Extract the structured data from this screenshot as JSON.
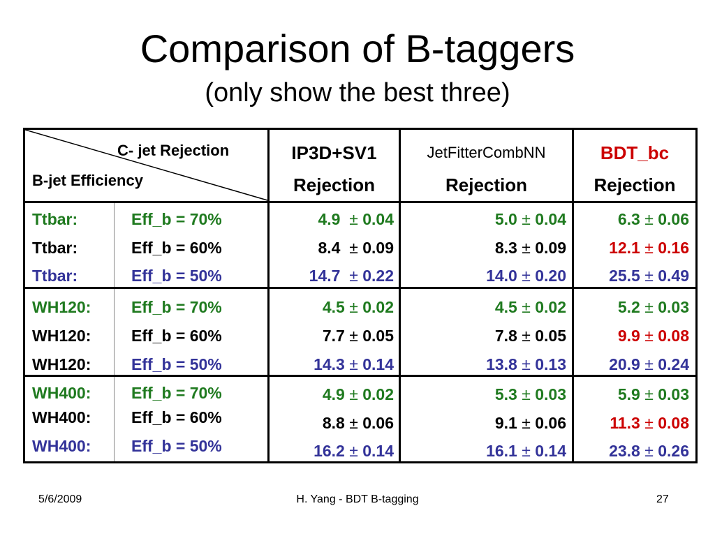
{
  "slide": {
    "title": "Comparison of B-taggers",
    "subtitle": "(only show the best three)"
  },
  "table": {
    "corner_top": "C- jet Rejection",
    "corner_bottom": "B-jet Efficiency",
    "columns": [
      {
        "line1": "IP3D+SV1",
        "line2": "Rejection"
      },
      {
        "line1": "JetFitterCombNN",
        "line2": "Rejection"
      },
      {
        "line1": "BDT_bc",
        "line2": "Rejection"
      }
    ],
    "pm": "±",
    "groups": [
      {
        "rows": [
          {
            "sample": "Ttbar:",
            "eff": "Eff_b = 70%",
            "vals": [
              [
                "4.9",
                "0.04"
              ],
              [
                "5.0",
                "0.04"
              ],
              [
                "6.3",
                "0.06"
              ]
            ]
          },
          {
            "sample": "Ttbar:",
            "eff": "Eff_b = 60%",
            "vals": [
              [
                "8.4",
                "0.09"
              ],
              [
                "8.3",
                "0.09"
              ],
              [
                "12.1",
                "0.16"
              ]
            ]
          },
          {
            "sample": "Ttbar:",
            "eff": "Eff_b = 50%",
            "vals": [
              [
                "14.7",
                "0.22"
              ],
              [
                "14.0",
                "0.20"
              ],
              [
                "25.5",
                "0.49"
              ]
            ]
          }
        ]
      },
      {
        "rows": [
          {
            "sample": "WH120:",
            "eff": "Eff_b = 70%",
            "vals": [
              [
                "4.5",
                "0.02"
              ],
              [
                "4.5",
                "0.02"
              ],
              [
                "5.2",
                "0.03"
              ]
            ]
          },
          {
            "sample": "WH120:",
            "eff": "Eff_b = 60%",
            "vals": [
              [
                "7.7",
                "0.05"
              ],
              [
                "7.8",
                "0.05"
              ],
              [
                "9.9",
                "0.08"
              ]
            ]
          },
          {
            "sample": "WH120:",
            "eff": "Eff_b = 50%",
            "vals": [
              [
                "14.3",
                "0.14"
              ],
              [
                "13.8",
                "0.13"
              ],
              [
                "20.9",
                "0.24"
              ]
            ]
          }
        ]
      },
      {
        "rows": [
          {
            "sample": "WH400:",
            "eff": "Eff_b = 70%",
            "vals": [
              [
                "4.9",
                "0.02"
              ],
              [
                "5.3",
                "0.03"
              ],
              [
                "5.9",
                "0.03"
              ]
            ]
          },
          {
            "sample": "WH400:",
            "eff": "Eff_b = 60%",
            "vals": [
              [
                "8.8",
                "0.06"
              ],
              [
                "9.1",
                "0.06"
              ],
              [
                "11.3",
                "0.08"
              ]
            ]
          },
          {
            "sample": "WH400:",
            "eff": "Eff_b = 50%",
            "vals": [
              [
                "16.2",
                "0.14"
              ],
              [
                "16.1",
                "0.14"
              ],
              [
                "23.8",
                "0.26"
              ]
            ]
          }
        ]
      }
    ]
  },
  "footer": {
    "date": "5/6/2009",
    "center": "H. Yang - BDT B-tagging",
    "page": "27"
  },
  "colors": {
    "green": "#1f7a1f",
    "blue": "#333399",
    "red": "#cc0000",
    "black": "#000000"
  }
}
